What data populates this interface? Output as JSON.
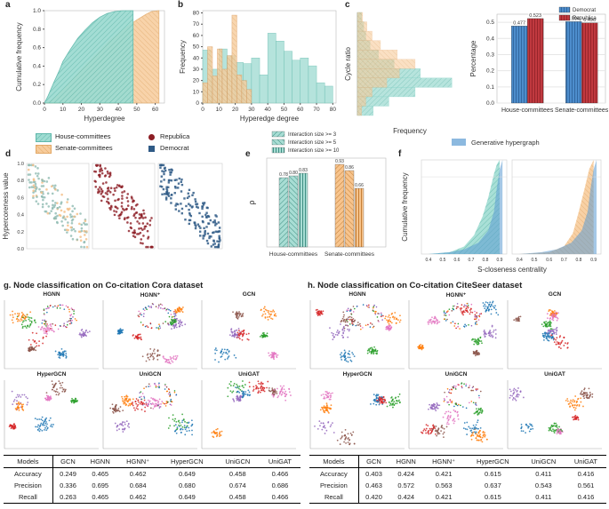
{
  "panel_labels": {
    "a": "a",
    "b": "b",
    "c": "c",
    "d": "d",
    "e": "e",
    "f": "f"
  },
  "colors": {
    "house": "#7fcfc4",
    "senate": "#f4bd83",
    "republican": "#8c1d24",
    "democrat": "#2f5a86",
    "gen": "#5b9bd1",
    "red_bar": "#c0393f",
    "blue_bar": "#3f7fc0"
  },
  "panel_a": {
    "xlabel": "Hyperdegree",
    "ylabel": "Cumulative frequency",
    "xticks": [
      "0",
      "10",
      "20",
      "30",
      "40",
      "50",
      "60"
    ],
    "yticks": [
      "0.0",
      "0.2",
      "0.4",
      "0.6",
      "0.8",
      "1.0"
    ]
  },
  "panel_b": {
    "xlabel": "Hyperedge degree",
    "ylabel": "Frequency",
    "xticks": [
      "0",
      "10",
      "20",
      "30",
      "40",
      "50",
      "60",
      "70",
      "80"
    ],
    "yticks": [
      "0",
      "10",
      "20",
      "30",
      "40",
      "50",
      "60",
      "70",
      "80"
    ]
  },
  "panel_c": {
    "ylabel": "Cycle ratio",
    "xlabel": "Frequency"
  },
  "panel_c2": {
    "ylabel": "Percentage",
    "legend": [
      "Democrat",
      "Republica"
    ],
    "yticks": [
      "0.0",
      "0.1",
      "0.2",
      "0.3",
      "0.4",
      "0.5"
    ],
    "categories": [
      "House-committees",
      "Senate-committees"
    ],
    "value_labels": [
      "0.477",
      "0.523",
      "0.504",
      "0.496"
    ]
  },
  "legend_d": {
    "items": [
      "House-committees",
      "Senate-committees",
      "Republica",
      "Democrat"
    ]
  },
  "panel_d": {
    "ylabel": "Hypercoreness value",
    "yticks": [
      "0.0",
      "0.2",
      "0.4",
      "0.6",
      "0.8",
      "1.0"
    ]
  },
  "panel_e": {
    "ylabel": "ρ",
    "legend": [
      "Interaction size >= 3",
      "Interaction size >= 5",
      "Interaction size >= 10"
    ],
    "categories": [
      "House-committees",
      "Senate-committees"
    ],
    "value_labels": [
      "0.78",
      "0.80",
      "0.83",
      "0.93",
      "0.86",
      "0.66"
    ]
  },
  "panel_f": {
    "legend": "Generative hypergraph",
    "ylabel": "Cumulative frequency",
    "xlabel": "S-closeness centrality",
    "xticks": [
      "0.4",
      "0.5",
      "0.6",
      "0.7",
      "0.8",
      "0.9"
    ]
  },
  "section_g": {
    "title": "g. Node classification on Co-citation Cora dataset",
    "plot_titles": [
      "HGNN",
      "HGNN⁺",
      "GCN",
      "HyperGCN",
      "UniGCN",
      "UniGAT"
    ]
  },
  "section_h": {
    "title": "h. Node classification on Co-citation CiteSeer dataset",
    "plot_titles": [
      "HGNN",
      "HGNN⁺",
      "GCN",
      "HyperGCN",
      "UniGCN",
      "UniGAT"
    ]
  },
  "table_g": {
    "headers": [
      "Models",
      "GCN",
      "HGNN",
      "HGNN⁺",
      "HyperGCN",
      "UniGCN",
      "UniGAT"
    ],
    "rows": [
      [
        "Accuracy",
        "0.249",
        "0.465",
        "0.462",
        "0.649",
        "0.458",
        "0.466"
      ],
      [
        "Precision",
        "0.336",
        "0.695",
        "0.684",
        "0.680",
        "0.674",
        "0.686"
      ],
      [
        "Recall",
        "0.263",
        "0.465",
        "0.462",
        "0.649",
        "0.458",
        "0.466"
      ]
    ]
  },
  "table_h": {
    "headers": [
      "Models",
      "GCN",
      "HGNN",
      "HGNN⁺",
      "HyperGCN",
      "UniGCN",
      "UniGAT"
    ],
    "rows": [
      [
        "Accuracy",
        "0.403",
        "0.424",
        "0.421",
        "0.615",
        "0.411",
        "0.416"
      ],
      [
        "Precision",
        "0.463",
        "0.572",
        "0.563",
        "0.637",
        "0.543",
        "0.561"
      ],
      [
        "Recall",
        "0.420",
        "0.424",
        "0.421",
        "0.615",
        "0.411",
        "0.416"
      ]
    ]
  },
  "chart_data": [
    {
      "type": "line",
      "panel": "a",
      "title": "",
      "xlabel": "Hyperdegree",
      "ylabel": "Cumulative frequency",
      "xlim": [
        0,
        65
      ],
      "ylim": [
        0,
        1
      ],
      "series": [
        {
          "name": "House-committees",
          "x": [
            0,
            2,
            5,
            8,
            10,
            14,
            18,
            22,
            26,
            30,
            34,
            38,
            42,
            44,
            48
          ],
          "values": [
            0,
            0.08,
            0.22,
            0.35,
            0.45,
            0.58,
            0.7,
            0.79,
            0.87,
            0.93,
            0.97,
            0.99,
            1.0,
            1.0,
            1.0
          ]
        },
        {
          "name": "Senate-committees",
          "x": [
            0,
            3,
            6,
            10,
            15,
            20,
            25,
            30,
            35,
            40,
            45,
            50,
            55,
            58,
            62
          ],
          "values": [
            0,
            0.02,
            0.06,
            0.14,
            0.25,
            0.36,
            0.46,
            0.56,
            0.67,
            0.75,
            0.83,
            0.9,
            0.96,
            0.99,
            1.0
          ]
        }
      ]
    },
    {
      "type": "bar",
      "panel": "b",
      "title": "",
      "xlabel": "Hyperedge degree",
      "ylabel": "Frequency",
      "xlim": [
        0,
        82
      ],
      "ylim": [
        0,
        82
      ],
      "series": [
        {
          "name": "House-committees",
          "bin_edges": [
            0,
            5,
            10,
            15,
            20,
            25,
            30,
            35,
            40,
            45,
            50,
            55,
            60,
            65,
            70,
            75,
            80
          ],
          "values": [
            47,
            30,
            48,
            42,
            36,
            35,
            40,
            25,
            62,
            55,
            46,
            38,
            40,
            33,
            18,
            15
          ]
        },
        {
          "name": "Senate-committees",
          "bin_edges": [
            0,
            3,
            6,
            9,
            12,
            15,
            18,
            21,
            24,
            27,
            30
          ],
          "values": [
            18,
            50,
            24,
            48,
            30,
            42,
            78,
            25,
            20,
            12
          ]
        }
      ]
    },
    {
      "type": "bar",
      "panel": "c",
      "title": "",
      "xlabel": "Frequency",
      "ylabel": "Cycle ratio",
      "orientation": "horizontal",
      "series": [
        {
          "name": "House-committees",
          "values": [
            4,
            6,
            8,
            12,
            20,
            35,
            60,
            90,
            55,
            30,
            15
          ]
        },
        {
          "name": "Senate-committees",
          "values": [
            5,
            9,
            14,
            22,
            38,
            55,
            40,
            28,
            14,
            8,
            4
          ]
        }
      ]
    },
    {
      "type": "bar",
      "panel": "c2",
      "title": "",
      "xlabel": "",
      "ylabel": "Percentage",
      "categories": [
        "House-committees",
        "Senate-committees"
      ],
      "ylim": [
        0,
        0.55
      ],
      "series": [
        {
          "name": "Democrat",
          "values": [
            0.477,
            0.504
          ]
        },
        {
          "name": "Republica",
          "values": [
            0.523,
            0.496
          ]
        }
      ]
    },
    {
      "type": "scatter",
      "panel": "d",
      "title": "",
      "xlabel": "",
      "ylabel": "Hypercoreness value",
      "ylim": [
        0,
        1
      ],
      "series": [
        {
          "name": "House-committees"
        },
        {
          "name": "Senate-committees"
        },
        {
          "name": "Republica"
        },
        {
          "name": "Democrat"
        }
      ]
    },
    {
      "type": "bar",
      "panel": "e",
      "title": "",
      "xlabel": "",
      "ylabel": "ρ",
      "categories": [
        "House-committees",
        "Senate-committees"
      ],
      "ylim": [
        0,
        1.0
      ],
      "series": [
        {
          "name": "Interaction size >= 3",
          "values": [
            0.78,
            0.93
          ]
        },
        {
          "name": "Interaction size >= 5",
          "values": [
            0.8,
            0.86
          ]
        },
        {
          "name": "Interaction size >= 10",
          "values": [
            0.83,
            0.66
          ]
        }
      ]
    },
    {
      "type": "area",
      "panel": "f",
      "title": "",
      "xlabel": "S-closeness centrality",
      "ylabel": "Cumulative frequency",
      "xlim": [
        0.35,
        0.95
      ],
      "ylim": [
        0,
        1
      ],
      "series": [
        {
          "name": "House-committees",
          "x": [
            0.4,
            0.55,
            0.65,
            0.72,
            0.78,
            0.82,
            0.86,
            0.88,
            0.9
          ],
          "values": [
            0,
            0.02,
            0.08,
            0.2,
            0.4,
            0.6,
            0.85,
            0.95,
            1.0
          ]
        },
        {
          "name": "Senate-committees",
          "x": [
            0.4,
            0.6,
            0.7,
            0.76,
            0.8,
            0.84,
            0.87,
            0.9
          ],
          "values": [
            0,
            0.02,
            0.08,
            0.22,
            0.45,
            0.7,
            0.9,
            1.0
          ]
        },
        {
          "name": "Generative hypergraph",
          "x": [
            0.4,
            0.55,
            0.65,
            0.75,
            0.82,
            0.86,
            0.88,
            0.9,
            0.92
          ],
          "values": [
            0,
            0.02,
            0.05,
            0.12,
            0.25,
            0.45,
            0.7,
            0.9,
            1.0
          ]
        }
      ]
    },
    {
      "type": "scatter",
      "panel": "g",
      "title": "Node classification on Co-citation Cora dataset",
      "xlabel": "",
      "ylabel": "",
      "series": [
        {
          "name": "HGNN"
        },
        {
          "name": "HGNN⁺"
        },
        {
          "name": "GCN"
        },
        {
          "name": "HyperGCN"
        },
        {
          "name": "UniGCN"
        },
        {
          "name": "UniGAT"
        }
      ]
    },
    {
      "type": "scatter",
      "panel": "h",
      "title": "Node classification on Co-citation CiteSeer dataset",
      "xlabel": "",
      "ylabel": "",
      "series": [
        {
          "name": "HGNN"
        },
        {
          "name": "HGNN⁺"
        },
        {
          "name": "GCN"
        },
        {
          "name": "HyperGCN"
        },
        {
          "name": "UniGCN"
        },
        {
          "name": "UniGAT"
        }
      ]
    }
  ]
}
